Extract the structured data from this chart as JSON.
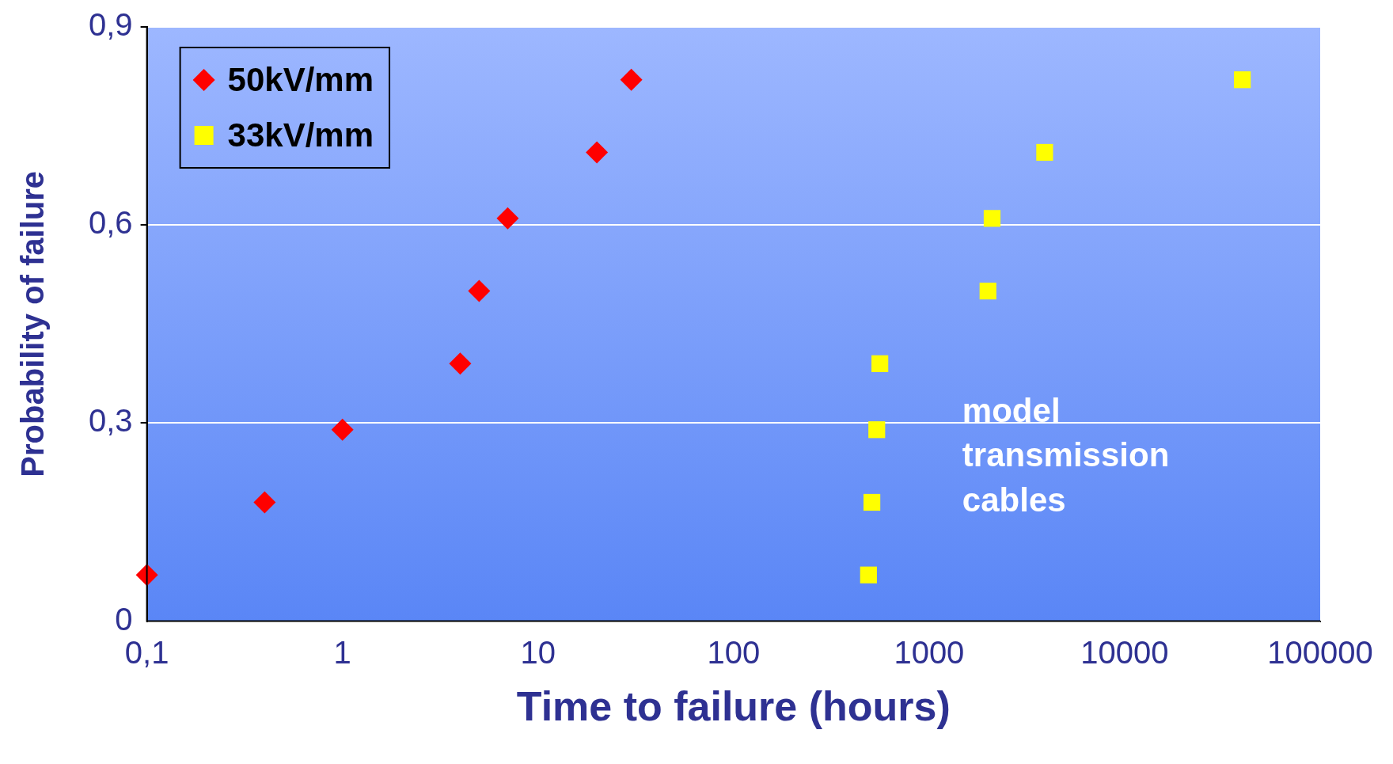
{
  "chart_data": {
    "type": "scatter",
    "xlabel": "Time to failure (hours)",
    "ylabel": "Probability of failure",
    "log": "x",
    "xlim": [
      0.1,
      100000
    ],
    "xticks": [
      {
        "value": 0.1,
        "label": "0,1"
      },
      1,
      10,
      100,
      1000,
      10000,
      100000
    ],
    "ylim": [
      0,
      0.9
    ],
    "yticks": [
      0,
      {
        "value": 0.3,
        "label": "0,3"
      },
      {
        "value": 0.6,
        "label": "0,6"
      },
      {
        "value": 0.9,
        "label": "0,9"
      }
    ],
    "grid": "y",
    "legend": "top left",
    "annotations": [
      "model transmission cables"
    ],
    "series": [
      {
        "name": "50kV/mm",
        "color": "#ff0000",
        "marker": "diamond",
        "x": [
          0.1,
          0.4,
          1,
          4,
          5,
          7,
          20,
          30
        ],
        "values": [
          0.07,
          0.18,
          0.29,
          0.39,
          0.5,
          0.61,
          0.71,
          0.82
        ]
      },
      {
        "name": "33kV/mm",
        "color": "#ffff00",
        "marker": "square",
        "x": [
          490,
          510,
          540,
          560,
          2000,
          2100,
          3900,
          40000
        ],
        "values": [
          0.07,
          0.18,
          0.29,
          0.39,
          0.5,
          0.61,
          0.71,
          0.82
        ]
      }
    ]
  }
}
